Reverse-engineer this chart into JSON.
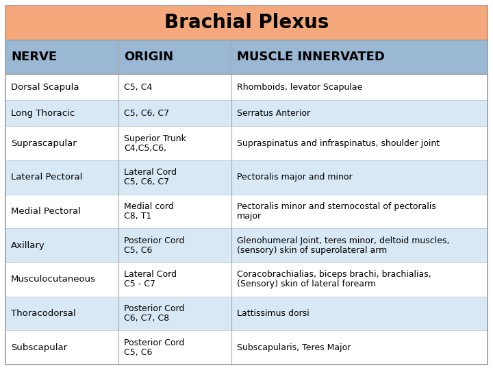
{
  "title": "Brachial Plexus",
  "title_bg": "#F4A87C",
  "header_bg": "#9AB7D3",
  "row_bg_even": "#FFFFFF",
  "row_bg_odd": "#D8E8F4",
  "headers": [
    "NERVE",
    "ORIGIN",
    "MUSCLE INNERVATED"
  ],
  "rows": [
    {
      "nerve": "Dorsal Scapula",
      "origin": "C5, C4",
      "muscle": "Rhomboids, levator Scapulae"
    },
    {
      "nerve": "Long Thoracic",
      "origin": "C5, C6, C7",
      "muscle": "Serratus Anterior"
    },
    {
      "nerve": "Suprascapular",
      "origin": "Superior Trunk\nC4,C5,C6,",
      "muscle": "Supraspinatus and infraspinatus, shoulder joint"
    },
    {
      "nerve": "Lateral Pectoral",
      "origin": "Lateral Cord\nC5, C6, C7",
      "muscle": "Pectoralis major and minor"
    },
    {
      "nerve": "Medial Pectoral",
      "origin": "Medial cord\nC8, T1",
      "muscle": "Pectoralis minor and sternocostal of pectoralis\nmajor"
    },
    {
      "nerve": "Axillary",
      "origin": "Posterior Cord\nC5, C6",
      "muscle": "Glenohumeral Joint, teres minor, deltoid muscles,\n(sensory) skin of superolateral arm"
    },
    {
      "nerve": "Musculocutaneous",
      "origin": "Lateral Cord\nC5 - C7",
      "muscle": "Coracobrachialias, biceps brachi, brachialias,\n(Sensory) skin of lateral forearm"
    },
    {
      "nerve": "Thoracodorsal",
      "origin": "Posterior Cord\nC6, C7, C8",
      "muscle": "Lattissimus dorsi"
    },
    {
      "nerve": "Subscapular",
      "origin": "Posterior Cord\nC5, C6",
      "muscle": "Subscapularis, Teres Major"
    }
  ]
}
